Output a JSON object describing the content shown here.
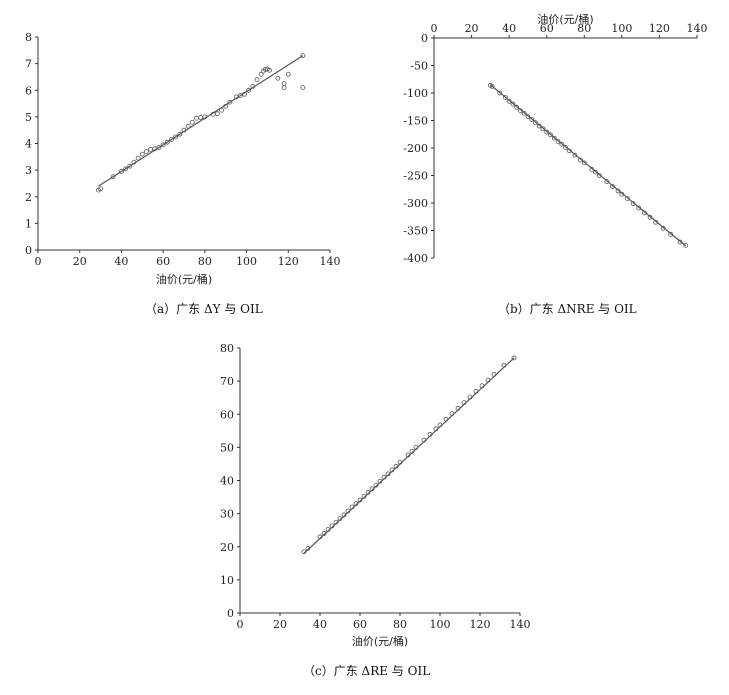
{
  "chart_data": [
    {
      "id": "a",
      "type": "scatter",
      "caption": "（a）广东 ΔY 与 OIL",
      "xlabel": "油价(元/桶)",
      "ylabel": "",
      "xlim": [
        0,
        140
      ],
      "ylim": [
        0,
        8
      ],
      "xticks": [
        0,
        20,
        40,
        60,
        80,
        100,
        120,
        140
      ],
      "yticks": [
        0,
        1,
        2,
        3,
        4,
        5,
        6,
        7,
        8
      ],
      "x_axis_position": "bottom",
      "grid": false,
      "legend": "none",
      "fit_line": {
        "x": [
          29,
          127
        ],
        "y": [
          2.4,
          7.3
        ]
      },
      "points": [
        [
          29,
          2.25
        ],
        [
          30,
          2.3
        ],
        [
          36,
          2.75
        ],
        [
          40,
          2.95
        ],
        [
          42,
          3.05
        ],
        [
          44,
          3.15
        ],
        [
          46,
          3.3
        ],
        [
          48,
          3.45
        ],
        [
          50,
          3.6
        ],
        [
          52,
          3.7
        ],
        [
          54,
          3.78
        ],
        [
          56,
          3.8
        ],
        [
          58,
          3.85
        ],
        [
          60,
          3.95
        ],
        [
          62,
          4.05
        ],
        [
          64,
          4.15
        ],
        [
          66,
          4.25
        ],
        [
          68,
          4.35
        ],
        [
          70,
          4.5
        ],
        [
          72,
          4.65
        ],
        [
          74,
          4.8
        ],
        [
          76,
          4.95
        ],
        [
          78,
          4.98
        ],
        [
          80,
          5.0
        ],
        [
          84,
          5.1
        ],
        [
          86,
          5.12
        ],
        [
          88,
          5.25
        ],
        [
          90,
          5.4
        ],
        [
          92,
          5.55
        ],
        [
          95,
          5.75
        ],
        [
          97,
          5.8
        ],
        [
          99,
          5.85
        ],
        [
          101,
          6.0
        ],
        [
          103,
          6.15
        ],
        [
          105,
          6.4
        ],
        [
          107,
          6.6
        ],
        [
          108,
          6.72
        ],
        [
          109,
          6.78
        ],
        [
          110,
          6.8
        ],
        [
          111,
          6.75
        ],
        [
          115,
          6.45
        ],
        [
          118,
          6.25
        ],
        [
          118,
          6.1
        ],
        [
          120,
          6.6
        ],
        [
          127,
          6.1
        ],
        [
          127,
          7.3
        ]
      ]
    },
    {
      "id": "b",
      "type": "scatter",
      "caption": "（b）广东 ΔNRE 与 OIL",
      "xlabel": "油价(元/桶)",
      "ylabel": "",
      "xlim": [
        0,
        140
      ],
      "ylim": [
        -400,
        0
      ],
      "xticks": [
        0,
        20,
        40,
        60,
        80,
        100,
        120,
        140
      ],
      "yticks": [
        0,
        -50,
        -100,
        -150,
        -200,
        -250,
        -300,
        -350,
        -400
      ],
      "x_axis_position": "top",
      "grid": false,
      "legend": "none",
      "fit_line": {
        "x": [
          30,
          134
        ],
        "y": [
          -85,
          -378
        ]
      },
      "points": [
        [
          30,
          -86
        ],
        [
          31,
          -88
        ],
        [
          35,
          -100
        ],
        [
          38,
          -108
        ],
        [
          40,
          -115
        ],
        [
          42,
          -120
        ],
        [
          44,
          -126
        ],
        [
          46,
          -132
        ],
        [
          48,
          -137
        ],
        [
          50,
          -143
        ],
        [
          52,
          -148
        ],
        [
          54,
          -154
        ],
        [
          56,
          -160
        ],
        [
          58,
          -165
        ],
        [
          60,
          -171
        ],
        [
          62,
          -176
        ],
        [
          64,
          -182
        ],
        [
          66,
          -188
        ],
        [
          68,
          -193
        ],
        [
          70,
          -199
        ],
        [
          72,
          -205
        ],
        [
          75,
          -213
        ],
        [
          78,
          -222
        ],
        [
          80,
          -227
        ],
        [
          84,
          -239
        ],
        [
          86,
          -244
        ],
        [
          88,
          -250
        ],
        [
          92,
          -261
        ],
        [
          95,
          -270
        ],
        [
          98,
          -278
        ],
        [
          100,
          -284
        ],
        [
          103,
          -292
        ],
        [
          106,
          -301
        ],
        [
          109,
          -309
        ],
        [
          112,
          -318
        ],
        [
          115,
          -326
        ],
        [
          118,
          -335
        ],
        [
          122,
          -346
        ],
        [
          126,
          -357
        ],
        [
          131,
          -371
        ],
        [
          134,
          -377
        ]
      ]
    },
    {
      "id": "c",
      "type": "scatter",
      "caption": "（c）广东 ΔRE 与 OIL",
      "xlabel": "油价(元/桶)",
      "ylabel": "",
      "xlim": [
        0,
        140
      ],
      "ylim": [
        0,
        80
      ],
      "xticks": [
        0,
        20,
        40,
        60,
        80,
        100,
        120,
        140
      ],
      "yticks": [
        0,
        10,
        20,
        30,
        40,
        50,
        60,
        70,
        80
      ],
      "x_axis_position": "bottom",
      "grid": false,
      "legend": "none",
      "fit_line": {
        "x": [
          32,
          137
        ],
        "y": [
          18,
          77
        ]
      },
      "points": [
        [
          32,
          18.5
        ],
        [
          34,
          19.5
        ],
        [
          40,
          23
        ],
        [
          42,
          24
        ],
        [
          44,
          25.2
        ],
        [
          46,
          26.3
        ],
        [
          48,
          27.4
        ],
        [
          50,
          28.5
        ],
        [
          52,
          29.6
        ],
        [
          54,
          30.8
        ],
        [
          56,
          32
        ],
        [
          58,
          33
        ],
        [
          60,
          34.1
        ],
        [
          62,
          35.2
        ],
        [
          64,
          36.4
        ],
        [
          66,
          37.5
        ],
        [
          68,
          38.6
        ],
        [
          70,
          39.8
        ],
        [
          72,
          41
        ],
        [
          74,
          42
        ],
        [
          76,
          43.2
        ],
        [
          78,
          44.3
        ],
        [
          80,
          45.5
        ],
        [
          84,
          47.7
        ],
        [
          86,
          48.8
        ],
        [
          88,
          50
        ],
        [
          92,
          52.2
        ],
        [
          95,
          53.9
        ],
        [
          98,
          55.6
        ],
        [
          100,
          56.8
        ],
        [
          103,
          58.5
        ],
        [
          106,
          60.2
        ],
        [
          109,
          61.8
        ],
        [
          112,
          63.5
        ],
        [
          115,
          65.2
        ],
        [
          118,
          66.9
        ],
        [
          121,
          68.6
        ],
        [
          124,
          70.3
        ],
        [
          127,
          72
        ],
        [
          132,
          74.8
        ],
        [
          137,
          77
        ]
      ]
    }
  ]
}
